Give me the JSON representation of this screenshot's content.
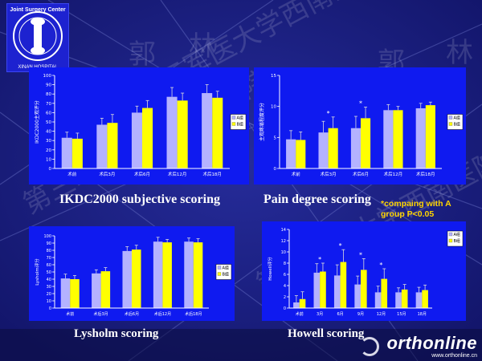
{
  "watermark_texts": [
    "第三军医大学西南医院",
    "郭",
    "林"
  ],
  "logo_texts": [
    "Joint Surgery Center",
    "XINAN HOSPITAL"
  ],
  "footer": {
    "brand": "orthonline",
    "brand_url": "www.orthonline.cn"
  },
  "captions": {
    "ikdc": "IKDC2000 subjective scoring",
    "pain": "Pain degree scoring",
    "pain_note": "*compaing with A group P<0.05",
    "lysholm": "Lysholm scoring",
    "howell": "Howell scoring"
  },
  "colors": {
    "series_a": "#b4b2ff",
    "series_b": "#ffff00",
    "panel_bg": "#0f1af0",
    "axis": "#ffffff"
  },
  "chart_data": [
    {
      "id": "ikdc",
      "type": "bar",
      "ylabel": "IKDC2000主观评分",
      "categories": [
        "术前",
        "术后3月",
        "术后6月",
        "术后12月",
        "术后18月"
      ],
      "yticks": [
        0,
        10,
        20,
        30,
        40,
        50,
        60,
        70,
        80,
        90,
        100
      ],
      "ylim": [
        0,
        100
      ],
      "series": [
        {
          "name": "A组",
          "values": [
            33,
            47,
            60,
            77,
            81
          ],
          "errors": [
            6,
            7,
            7,
            10,
            9
          ]
        },
        {
          "name": "B组",
          "values": [
            32,
            49,
            65,
            73,
            76
          ],
          "errors": [
            6,
            9,
            8,
            8,
            7
          ]
        }
      ],
      "annotations": [],
      "legend": "right"
    },
    {
      "id": "pain",
      "type": "bar",
      "ylabel": "主观疼痛程度评分",
      "categories": [
        "术前",
        "术后3月",
        "术后6月",
        "术后12月",
        "术后18月"
      ],
      "yticks": [
        0,
        5,
        10,
        15
      ],
      "ylim": [
        0,
        15
      ],
      "series": [
        {
          "name": "A组",
          "values": [
            4.7,
            5.8,
            6.5,
            9.4,
            9.7
          ],
          "errors": [
            1.4,
            1.8,
            1.9,
            0.9,
            0.8
          ]
        },
        {
          "name": "B组",
          "values": [
            4.6,
            6.5,
            8.1,
            9.4,
            10.2
          ],
          "errors": [
            1.3,
            1.8,
            1.8,
            0.6,
            0.5
          ]
        }
      ],
      "annotations": [
        {
          "category": "术后3月",
          "text": "*"
        },
        {
          "category": "术后6月",
          "text": "*"
        }
      ],
      "legend": "right"
    },
    {
      "id": "lysholm",
      "type": "bar",
      "ylabel": "Lysholm评分",
      "categories": [
        "术前",
        "术后3月",
        "术后6月",
        "术后12月",
        "术后18月"
      ],
      "yticks": [
        0,
        10,
        20,
        30,
        40,
        50,
        60,
        70,
        80,
        90,
        100
      ],
      "ylim": [
        0,
        100
      ],
      "series": [
        {
          "name": "A组",
          "values": [
            41,
            48,
            79,
            92,
            92
          ],
          "errors": [
            6,
            5,
            6,
            6,
            5
          ]
        },
        {
          "name": "B组",
          "values": [
            40,
            51,
            81,
            91,
            91
          ],
          "errors": [
            5,
            5,
            6,
            4,
            5
          ]
        }
      ],
      "annotations": [],
      "legend": "right"
    },
    {
      "id": "howell",
      "type": "bar",
      "ylabel": "Howell评分",
      "categories": [
        "术前",
        "3月",
        "6月",
        "9月",
        "12月",
        "15月",
        "18月"
      ],
      "yticks": [
        0,
        2,
        4,
        6,
        8,
        10,
        12,
        14
      ],
      "ylim": [
        0,
        14
      ],
      "series": [
        {
          "name": "A组",
          "values": [
            1.0,
            6.3,
            5.8,
            4.2,
            2.8,
            2.8,
            2.8
          ],
          "errors": [
            1.2,
            1.6,
            1.9,
            1.5,
            1.1,
            0.8,
            0.9
          ]
        },
        {
          "name": "B组",
          "values": [
            1.6,
            6.5,
            8.2,
            6.8,
            5.2,
            3.3,
            3.2
          ],
          "errors": [
            1.3,
            1.5,
            2.2,
            2.0,
            1.8,
            0.9,
            0.9
          ]
        }
      ],
      "annotations": [
        {
          "category": "3月",
          "text": "*"
        },
        {
          "category": "6月",
          "text": "*"
        },
        {
          "category": "9月",
          "text": "*"
        },
        {
          "category": "12月",
          "text": "*"
        }
      ],
      "legend": "top-right"
    }
  ]
}
